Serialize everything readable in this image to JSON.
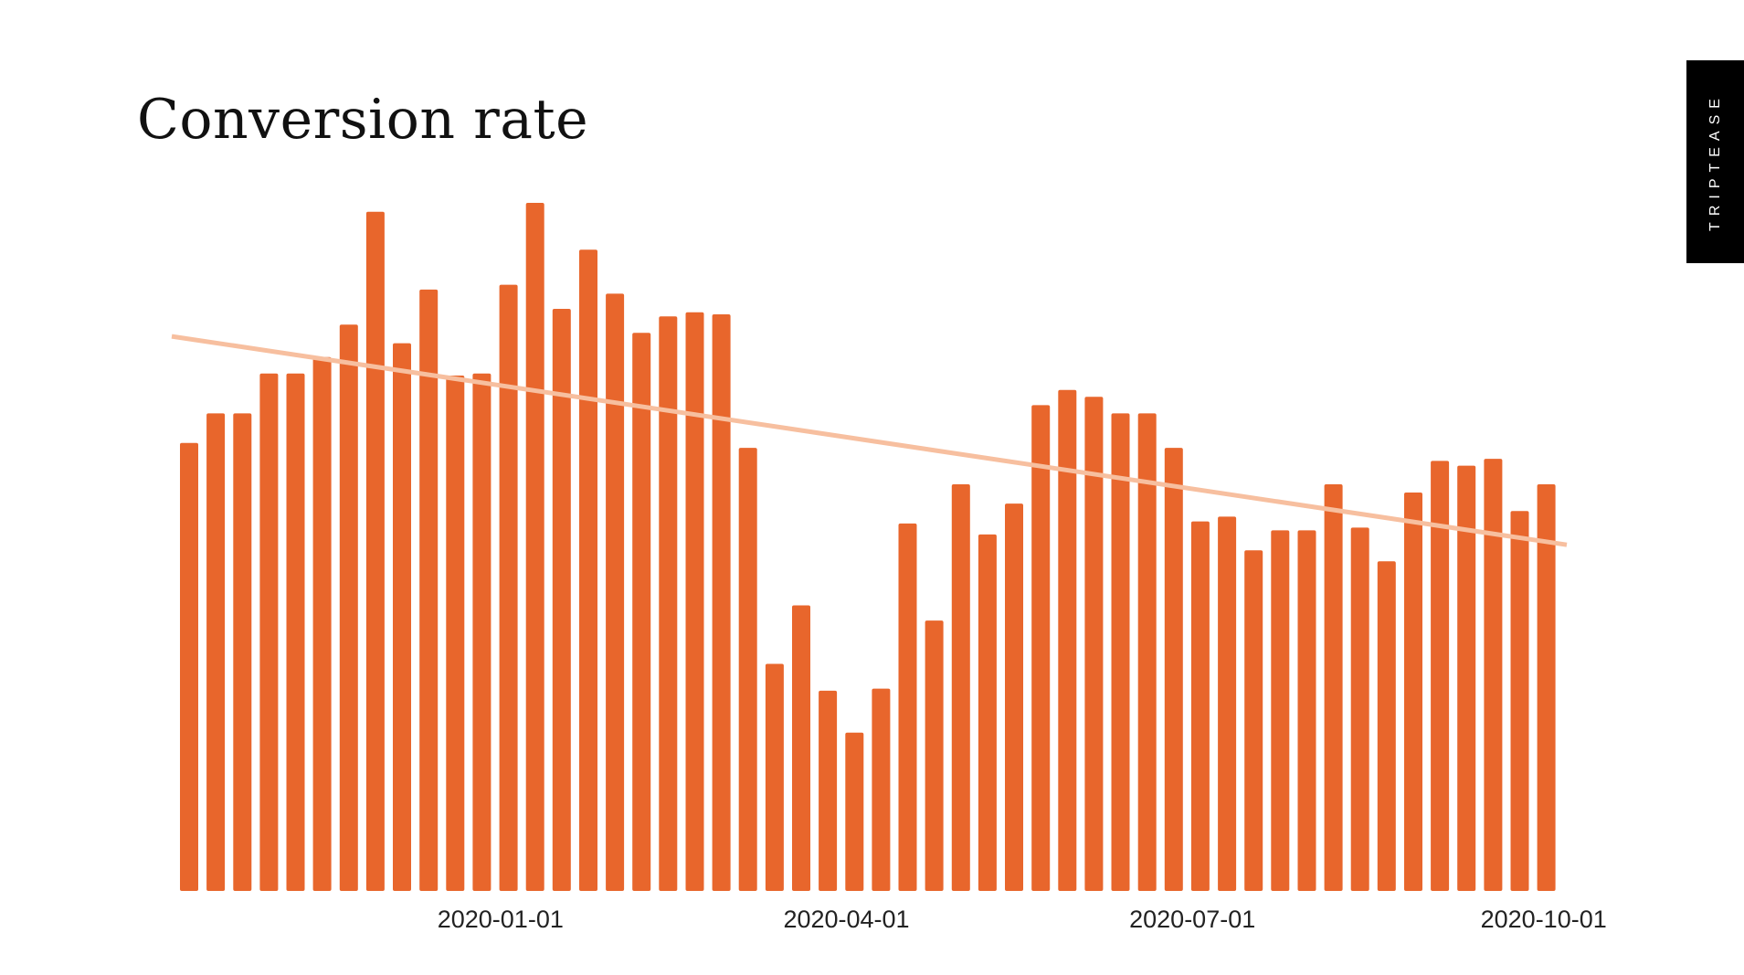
{
  "brand": "TRIPTEASE",
  "colors": {
    "bar": "#e8662c",
    "trend": "#f7bf9f"
  },
  "chart_data": {
    "type": "bar",
    "title": "Conversion rate",
    "xlabel": "",
    "ylabel": "",
    "x_tick_labels": [
      "2020-01-01",
      "2020-04-01",
      "2020-07-01",
      "2020-10-01"
    ],
    "x_tick_positions": [
      11.7,
      24.7,
      37.7,
      50.9
    ],
    "ylim": [
      0,
      100
    ],
    "grid": false,
    "legend": "none",
    "values": [
      65.1,
      69.4,
      69.4,
      75.2,
      75.2,
      77.6,
      82.3,
      98.7,
      79.6,
      87.4,
      74.9,
      75.2,
      88.1,
      100.0,
      84.6,
      93.2,
      86.8,
      81.1,
      83.5,
      84.1,
      83.8,
      64.4,
      33.0,
      41.5,
      29.1,
      23.0,
      29.4,
      53.4,
      39.3,
      59.1,
      51.8,
      56.3,
      70.6,
      72.8,
      71.8,
      69.4,
      69.4,
      64.4,
      53.7,
      54.4,
      49.5,
      52.4,
      52.4,
      59.1,
      52.8,
      47.9,
      57.9,
      62.5,
      61.8,
      62.8,
      55.2,
      59.1
    ],
    "trend": {
      "start": 80.6,
      "end": 50.3
    }
  }
}
